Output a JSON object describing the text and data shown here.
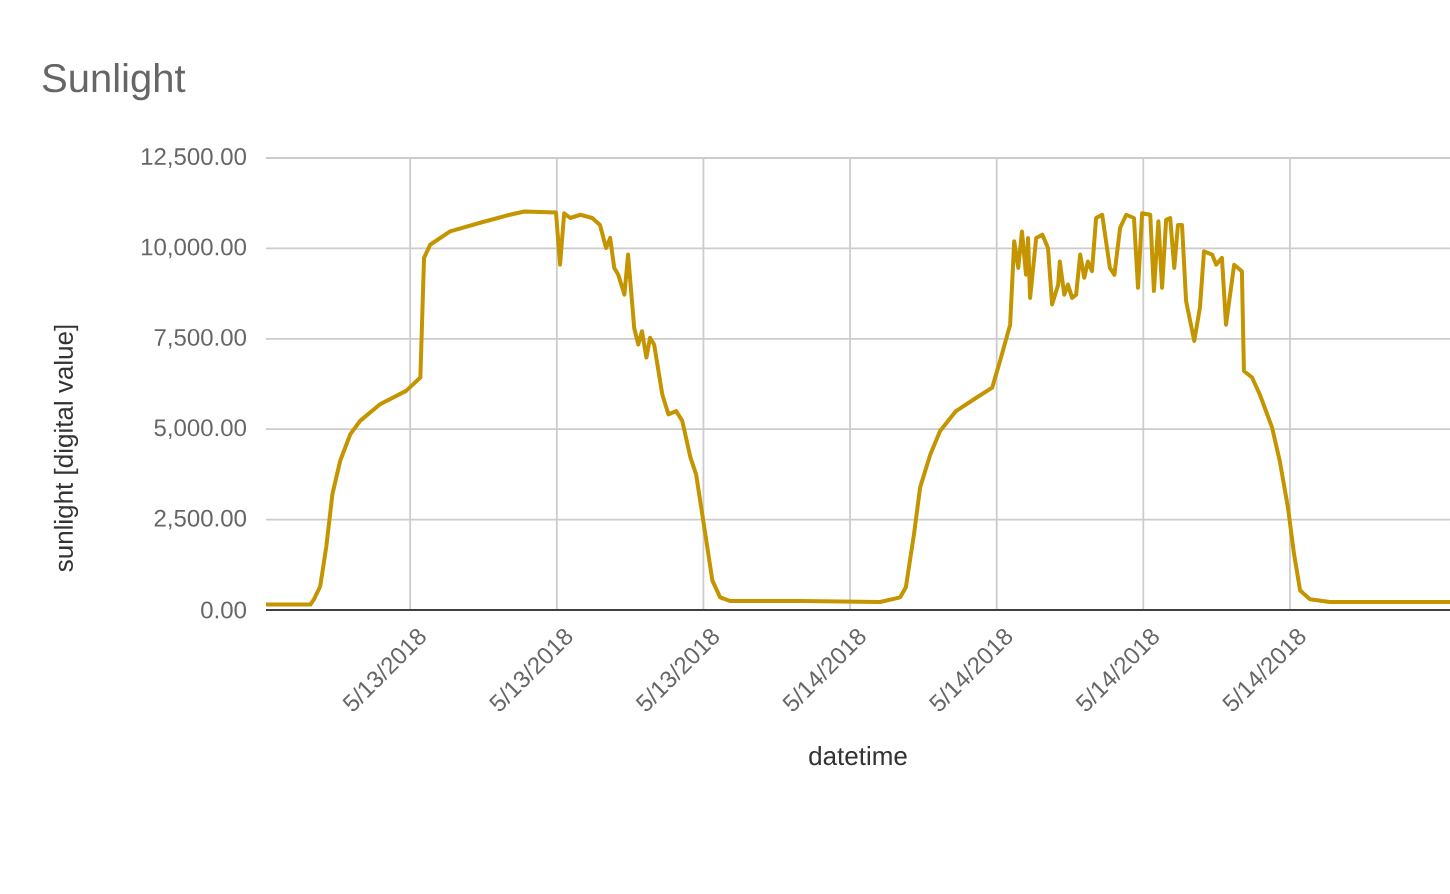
{
  "chart_data": {
    "type": "line",
    "title": "Sunlight",
    "xlabel": "datetime",
    "ylabel": "sunlight [digital value]",
    "xlim": [
      "2018-05-13T00:06",
      "2018-05-15T00:33"
    ],
    "ylim": [
      0,
      12500
    ],
    "xticks": [
      {
        "value": "2018-05-13T06:00",
        "label": "5/13/2018"
      },
      {
        "value": "2018-05-13T12:00",
        "label": "5/13/2018"
      },
      {
        "value": "2018-05-13T18:00",
        "label": "5/13/2018"
      },
      {
        "value": "2018-05-14T00:00",
        "label": "5/14/2018"
      },
      {
        "value": "2018-05-14T06:00",
        "label": "5/14/2018"
      },
      {
        "value": "2018-05-14T12:00",
        "label": "5/14/2018"
      },
      {
        "value": "2018-05-14T18:00",
        "label": "5/14/2018"
      }
    ],
    "yticks": [
      {
        "value": 0,
        "label": "0.00"
      },
      {
        "value": 2500,
        "label": "2,500.00"
      },
      {
        "value": 5000,
        "label": "5,000.00"
      },
      {
        "value": 7500,
        "label": "7,500.00"
      },
      {
        "value": 10000,
        "label": "10,000.00"
      },
      {
        "value": 12500,
        "label": "12,500.00"
      }
    ],
    "grid": true,
    "series": [
      {
        "color": "#c49500",
        "x": [
          "2018-05-13T00:06",
          "2018-05-13T01:55",
          "2018-05-13T02:04",
          "2018-05-13T02:19",
          "2018-05-13T02:34",
          "2018-05-13T02:49",
          "2018-05-13T03:08",
          "2018-05-13T03:33",
          "2018-05-13T03:57",
          "2018-05-13T04:46",
          "2018-05-13T05:50",
          "2018-05-13T06:25",
          "2018-05-13T06:34",
          "2018-05-13T06:49",
          "2018-05-13T07:38",
          "2018-05-13T08:52",
          "2018-05-13T10:05",
          "2018-05-13T10:40",
          "2018-05-13T11:58",
          "2018-05-13T12:08",
          "2018-05-13T12:18",
          "2018-05-13T12:33",
          "2018-05-13T12:58",
          "2018-05-13T13:27",
          "2018-05-13T13:46",
          "2018-05-13T14:01",
          "2018-05-13T14:11",
          "2018-05-13T14:21",
          "2018-05-13T14:31",
          "2018-05-13T14:46",
          "2018-05-13T14:55",
          "2018-05-13T15:10",
          "2018-05-13T15:20",
          "2018-05-13T15:29",
          "2018-05-13T15:40",
          "2018-05-13T15:49",
          "2018-05-13T15:59",
          "2018-05-13T16:19",
          "2018-05-13T16:34",
          "2018-05-13T16:53",
          "2018-05-13T17:08",
          "2018-05-13T17:28",
          "2018-05-13T17:42",
          "2018-05-13T18:02",
          "2018-05-13T18:22",
          "2018-05-13T18:41",
          "2018-05-13T19:05",
          "2018-05-13T21:58",
          "2018-05-14T01:14",
          "2018-05-14T02:03",
          "2018-05-14T02:17",
          "2018-05-14T02:37",
          "2018-05-14T02:52",
          "2018-05-14T03:17",
          "2018-05-14T03:41",
          "2018-05-14T04:20",
          "2018-05-14T05:10",
          "2018-05-14T05:49",
          "2018-05-14T06:08",
          "2018-05-14T06:33",
          "2018-05-14T06:43",
          "2018-05-14T06:53",
          "2018-05-14T07:02",
          "2018-05-14T07:12",
          "2018-05-14T07:17",
          "2018-05-14T07:22",
          "2018-05-14T07:37",
          "2018-05-14T07:52",
          "2018-05-14T08:06",
          "2018-05-14T08:16",
          "2018-05-14T08:31",
          "2018-05-14T08:35",
          "2018-05-14T08:46",
          "2018-05-14T08:55",
          "2018-05-14T09:05",
          "2018-05-14T09:15",
          "2018-05-14T09:25",
          "2018-05-14T09:35",
          "2018-05-14T09:44",
          "2018-05-14T09:54",
          "2018-05-14T10:04",
          "2018-05-14T10:19",
          "2018-05-14T10:38",
          "2018-05-14T10:49",
          "2018-05-14T11:03",
          "2018-05-14T11:18",
          "2018-05-14T11:37",
          "2018-05-14T11:47",
          "2018-05-14T11:57",
          "2018-05-14T12:17",
          "2018-05-14T12:26",
          "2018-05-14T12:37",
          "2018-05-14T12:46",
          "2018-05-14T12:56",
          "2018-05-14T13:06",
          "2018-05-14T13:16",
          "2018-05-14T13:25",
          "2018-05-14T13:35",
          "2018-05-14T13:45",
          "2018-05-14T14:05",
          "2018-05-14T14:19",
          "2018-05-14T14:29",
          "2018-05-14T14:49",
          "2018-05-14T14:59",
          "2018-05-14T15:13",
          "2018-05-14T15:23",
          "2018-05-14T15:33",
          "2018-05-14T15:43",
          "2018-05-14T16:02",
          "2018-05-14T16:07",
          "2018-05-14T16:27",
          "2018-05-14T16:46",
          "2018-05-14T17:16",
          "2018-05-14T17:35",
          "2018-05-14T17:55",
          "2018-05-14T18:10",
          "2018-05-14T18:25",
          "2018-05-14T18:49",
          "2018-05-14T19:38",
          "2018-05-14T22:31",
          "2018-05-15T00:33"
        ],
        "values": [
          150,
          150,
          300,
          650,
          1750,
          3200,
          4120,
          4860,
          5230,
          5690,
          6060,
          6430,
          9740,
          10100,
          10470,
          10710,
          10930,
          11020,
          10990,
          9550,
          10970,
          10840,
          10930,
          10840,
          10650,
          10010,
          10290,
          9460,
          9270,
          8720,
          9830,
          7800,
          7340,
          7710,
          6980,
          7530,
          7340,
          5960,
          5410,
          5500,
          5230,
          4220,
          3750,
          2290,
          810,
          350,
          250,
          250,
          220,
          350,
          630,
          2100,
          3390,
          4300,
          4950,
          5500,
          5870,
          6150,
          6880,
          7890,
          10200,
          9460,
          10470,
          9270,
          10290,
          8630,
          10290,
          10380,
          10010,
          8450,
          9000,
          9640,
          8720,
          9000,
          8630,
          8720,
          9830,
          9190,
          9640,
          9370,
          10840,
          10930,
          9460,
          9270,
          10570,
          10930,
          10840,
          8910,
          10970,
          10930,
          8820,
          10750,
          8910,
          10790,
          10840,
          9460,
          10650,
          10650,
          8540,
          7440,
          8360,
          9920,
          9830,
          9550,
          9740,
          7890,
          8720,
          9550,
          9370,
          6610,
          6430,
          5960,
          5050,
          4120,
          2840,
          1550,
          540,
          300,
          220,
          220,
          220
        ]
      }
    ]
  }
}
